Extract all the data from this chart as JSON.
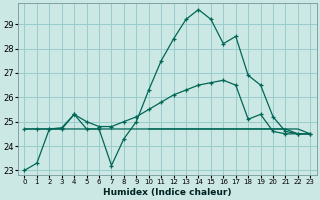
{
  "xlabel": "Humidex (Indice chaleur)",
  "background_color": "#cce8e4",
  "grid_color": "#99cccc",
  "line_color": "#006655",
  "xlim": [
    -0.5,
    23.5
  ],
  "ylim": [
    22.8,
    29.85
  ],
  "yticks": [
    23,
    24,
    25,
    26,
    27,
    28,
    29
  ],
  "xtick_labels": [
    "0",
    "1",
    "2",
    "3",
    "4",
    "5",
    "6",
    "7",
    "8",
    "9",
    "10",
    "11",
    "12",
    "13",
    "14",
    "15",
    "16",
    "17",
    "18",
    "19",
    "20",
    "21",
    "22",
    "23"
  ],
  "series1_x": [
    0,
    1,
    2,
    3,
    4,
    5,
    6,
    7,
    8,
    9,
    10,
    11,
    12,
    13,
    14,
    15,
    16,
    17,
    18,
    19,
    20,
    21,
    22,
    23
  ],
  "series1_y": [
    23.0,
    23.3,
    24.7,
    24.7,
    25.3,
    24.7,
    24.7,
    23.2,
    24.3,
    25.0,
    26.3,
    27.5,
    28.4,
    29.2,
    29.6,
    29.2,
    28.2,
    28.5,
    26.9,
    26.5,
    25.2,
    24.6,
    24.5,
    24.5
  ],
  "series2_x": [
    0,
    1,
    2,
    3,
    4,
    5,
    6,
    7,
    8,
    9,
    10,
    11,
    12,
    13,
    14,
    15,
    16,
    17,
    18,
    19,
    20,
    21,
    22,
    23
  ],
  "series2_y": [
    24.7,
    24.7,
    24.7,
    24.75,
    25.3,
    25.0,
    24.8,
    24.8,
    25.0,
    25.2,
    25.5,
    25.8,
    26.1,
    26.3,
    26.5,
    26.6,
    26.7,
    26.5,
    25.1,
    25.3,
    24.6,
    24.5,
    24.5,
    24.5
  ],
  "series3_x": [
    10,
    11,
    12,
    13,
    14,
    15,
    16,
    17,
    18,
    19,
    20,
    21,
    22,
    23
  ],
  "series3_y": [
    24.7,
    24.7,
    24.7,
    24.7,
    24.7,
    24.7,
    24.7,
    24.7,
    24.7,
    24.7,
    24.7,
    24.7,
    24.5,
    24.5
  ],
  "series4_x": [
    0,
    1,
    2,
    3,
    4,
    5,
    6,
    7,
    8,
    9,
    10,
    11,
    12,
    13,
    14,
    15,
    16,
    17,
    18,
    19,
    20,
    21,
    22,
    23
  ],
  "series4_y": [
    24.7,
    24.7,
    24.7,
    24.7,
    24.7,
    24.7,
    24.7,
    24.7,
    24.7,
    24.7,
    24.7,
    24.7,
    24.7,
    24.7,
    24.7,
    24.7,
    24.7,
    24.7,
    24.7,
    24.7,
    24.7,
    24.7,
    24.7,
    24.5
  ]
}
